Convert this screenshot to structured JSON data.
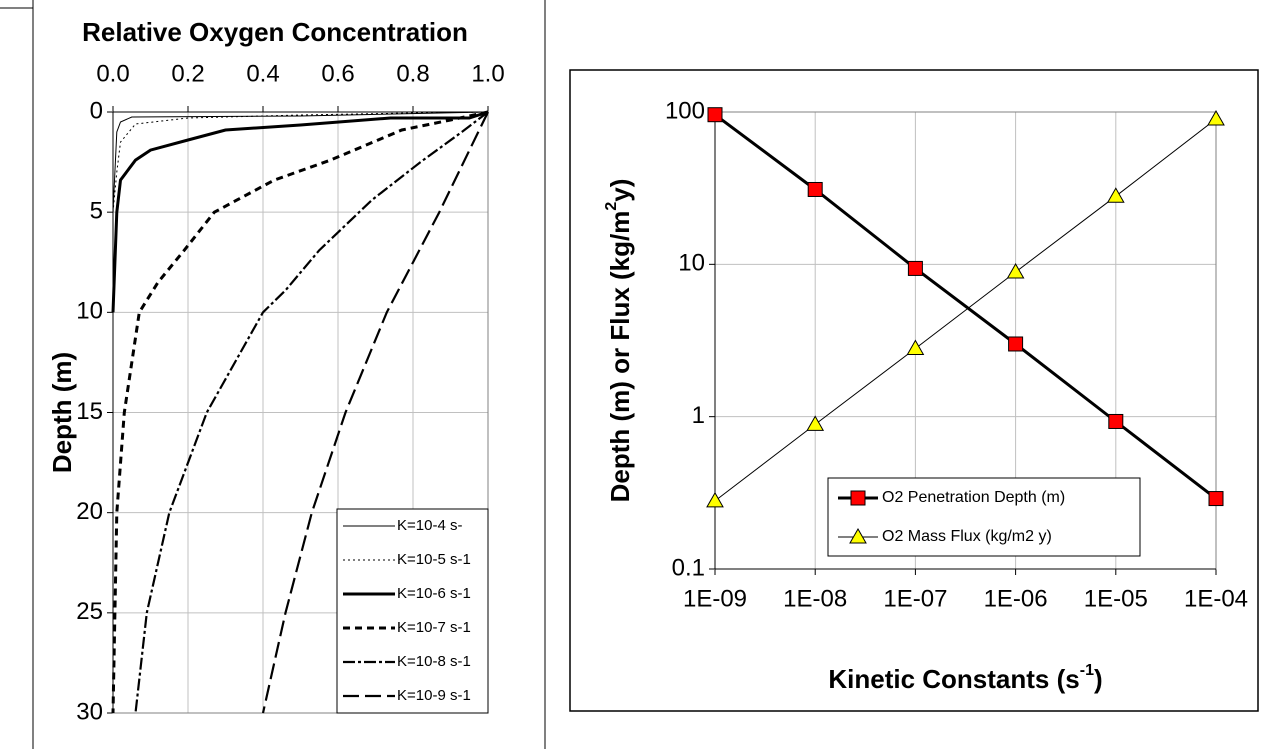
{
  "chart_data": [
    {
      "type": "line",
      "title": "Relative Oxygen Concentration",
      "ylabel": "Depth (m)",
      "xaxis_position": "top",
      "invert_y": true,
      "xlim": [
        0,
        1
      ],
      "xticks": [
        {
          "value": 0,
          "label": "0.0"
        },
        0.2,
        0.4,
        0.6,
        0.8,
        {
          "value": 1,
          "label": "1.0"
        }
      ],
      "ylim": [
        0,
        30
      ],
      "yticks": [
        0,
        5,
        10,
        15,
        20,
        25,
        30
      ],
      "grid": true,
      "legend": "lower right",
      "series": [
        {
          "name": "K=10-4 s-",
          "color": "#000000",
          "dash": "solid",
          "width": "thin",
          "x": [
            1.0,
            0.5,
            0.05,
            0.02,
            0.01,
            0.0,
            0.0
          ],
          "values": [
            0,
            0.2,
            0.25,
            0.5,
            1,
            5,
            30
          ]
        },
        {
          "name": "K=10-5 s-1",
          "color": "#000000",
          "dash": "dotted",
          "width": "thin",
          "x": [
            1.0,
            0.8,
            0.5,
            0.2,
            0.06,
            0.02,
            0.01,
            0.0
          ],
          "values": [
            0,
            0.05,
            0.15,
            0.3,
            0.6,
            1.5,
            3,
            5
          ]
        },
        {
          "name": "K=10-6 s-1",
          "color": "#000000",
          "dash": "solid",
          "width": "thick",
          "x": [
            1.0,
            0.95,
            0.74,
            0.5,
            0.3,
            0.2,
            0.1,
            0.06,
            0.02,
            0.01,
            0.0
          ],
          "values": [
            0,
            0.3,
            0.3,
            0.65,
            0.9,
            1.4,
            1.9,
            2.4,
            3.4,
            5,
            10
          ]
        },
        {
          "name": "K=10-7 s-1",
          "color": "#000000",
          "dash": "dashed",
          "width": "thick",
          "x": [
            1.0,
            0.9,
            0.77,
            0.58,
            0.43,
            0.33,
            0.27,
            0.19,
            0.12,
            0.07,
            0.03,
            0.01,
            0.0
          ],
          "values": [
            0,
            0.4,
            0.9,
            2.4,
            3.4,
            4.4,
            5,
            6.9,
            8.5,
            10,
            15,
            20,
            30
          ]
        },
        {
          "name": "K=10-8 s-1",
          "color": "#000000",
          "dash": "dashdot",
          "width": "medium",
          "x": [
            1.0,
            0.93,
            0.82,
            0.69,
            0.55,
            0.46,
            0.4,
            0.25,
            0.15,
            0.09,
            0.06
          ],
          "values": [
            0,
            1,
            2.5,
            4.4,
            6.9,
            8.9,
            10,
            15,
            20,
            25,
            30
          ]
        },
        {
          "name": "K=10-9 s-1",
          "color": "#000000",
          "dash": "longdash",
          "width": "medium",
          "x": [
            1.0,
            0.87,
            0.73,
            0.62,
            0.53,
            0.46,
            0.4
          ],
          "values": [
            0,
            5,
            10,
            15,
            20,
            25,
            30
          ]
        }
      ]
    },
    {
      "type": "line",
      "xlabel": {
        "text": "Kinetic Constants (s",
        "sup": "-1",
        "after": ")"
      },
      "ylabel": {
        "text": "Depth (m) or Flux (kg/m",
        "sup": "2",
        "after": "y)"
      },
      "xlog": true,
      "ylog": true,
      "x": [
        1e-09,
        1e-08,
        1e-07,
        1e-06,
        1e-05,
        0.0001
      ],
      "xlim": [
        1e-09,
        0.0001
      ],
      "xticks": [
        {
          "value": 1e-09,
          "label": "1E-09"
        },
        {
          "value": 1e-08,
          "label": "1E-08"
        },
        {
          "value": 1e-07,
          "label": "1E-07"
        },
        {
          "value": 1e-06,
          "label": "1E-06"
        },
        {
          "value": 1e-05,
          "label": "1E-05"
        },
        {
          "value": 0.0001,
          "label": "1E-04"
        }
      ],
      "ylim": [
        0.1,
        100
      ],
      "yticks": [
        0.1,
        1,
        10,
        100
      ],
      "grid": true,
      "legend": "lower center",
      "series": [
        {
          "name": "O2 Penetration Depth (m)",
          "color": "#ff0000",
          "marker": "square",
          "width": "thick",
          "values": [
            96,
            31,
            9.4,
            3.0,
            0.93,
            0.29
          ]
        },
        {
          "name": "O2 Mass Flux (kg/m2 y)",
          "color": "#ffff00",
          "marker": "triangle",
          "width": "thin",
          "values": [
            0.28,
            0.89,
            2.8,
            8.9,
            28,
            90
          ]
        }
      ]
    }
  ]
}
